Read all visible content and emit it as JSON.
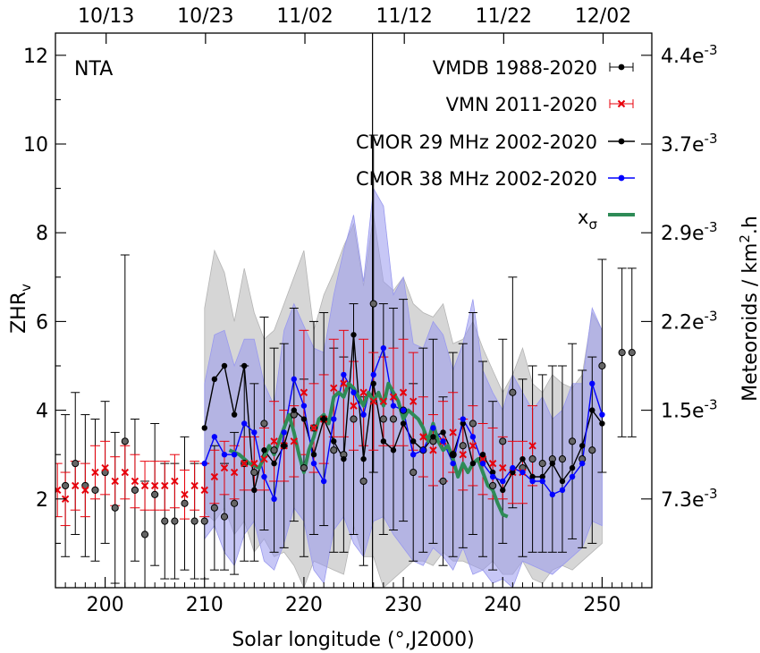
{
  "chart_data": {
    "type": "scatter",
    "annotation": "NTA",
    "xlabel": "Solar longitude (°,J2000)",
    "ylabel_main": "ZHR",
    "ylabel_sub": "v",
    "y2label_main": "Meteoroids / km",
    "y2label_sup": "2",
    "y2label_end": ".h",
    "xlim": [
      195,
      255
    ],
    "ylim": [
      0,
      12.5
    ],
    "x_ticks": [
      200,
      210,
      220,
      230,
      240,
      250
    ],
    "x_tick_labels": [
      "200",
      "210",
      "220",
      "230",
      "240",
      "250"
    ],
    "y_ticks": [
      2,
      4,
      6,
      8,
      10,
      12
    ],
    "y_tick_labels": [
      "2",
      "4",
      "6",
      "8",
      "10",
      "12"
    ],
    "top_ticks": [
      200.1,
      210.1,
      220.1,
      230.1,
      240.1,
      250.1
    ],
    "top_tick_labels": [
      "10/13",
      "10/23",
      "11/02",
      "11/12",
      "11/22",
      "12/02"
    ],
    "right_ticks": [
      2,
      4,
      6,
      8,
      10,
      12
    ],
    "right_tick_mantissas": [
      "7.3",
      "1.5",
      "2.2",
      "2.9",
      "3.7",
      "4.4"
    ],
    "right_tick_exp": "-3",
    "right_tick_prefix": "e",
    "vline_x": 226.9,
    "legend": [
      {
        "label": "VMDB 1988-2020",
        "key": "vmdb"
      },
      {
        "label": "VMN 2011-2020",
        "key": "vmn"
      },
      {
        "label": "CMOR 29 MHz 2002-2020",
        "key": "cmor29"
      },
      {
        "label": "CMOR 38 MHz 2002-2020",
        "key": "cmor38"
      },
      {
        "label": "x",
        "sub": "σ",
        "key": "xsigma"
      }
    ],
    "colors": {
      "vmdb": "#666666",
      "vmn": "#e8000b",
      "cmor29": "#000000",
      "cmor38": "#0000ff",
      "xsigma": "#2e8b57",
      "band29": "#b4b4b4",
      "band38": "#9999ee"
    },
    "series": [
      {
        "name": "VMDB 1988-2020",
        "key": "vmdb",
        "x": [
          196,
          197,
          198,
          199,
          200,
          201,
          202,
          203,
          204,
          205,
          206,
          207,
          208,
          209,
          210,
          211,
          212,
          213,
          214,
          215,
          216,
          217,
          218,
          219,
          220,
          221,
          222,
          223,
          224,
          225,
          226,
          227,
          228,
          229,
          230,
          231,
          232,
          233,
          234,
          235,
          236,
          237,
          238,
          239,
          240,
          241,
          242,
          243,
          244,
          245,
          246,
          247,
          248,
          249,
          250,
          252,
          253
        ],
        "y": [
          2.3,
          2.8,
          2.3,
          2.2,
          2.6,
          1.8,
          3.3,
          2.2,
          1.2,
          2.1,
          1.5,
          1.5,
          1.9,
          1.5,
          1.5,
          1.8,
          1.6,
          1.9,
          2.8,
          2.6,
          3.7,
          3.1,
          3.2,
          3.9,
          2.7,
          3.6,
          3.8,
          3.1,
          3.0,
          3.8,
          2.4,
          6.4,
          3.8,
          3.8,
          4.0,
          2.6,
          3.1,
          3.3,
          2.4,
          3.0,
          3.2,
          3.7,
          2.9,
          2.3,
          3.3,
          4.4,
          2.7,
          2.9,
          2.8,
          2.9,
          2.9,
          3.3,
          2.9,
          3.1,
          5.0,
          5.3,
          5.3
        ],
        "err": [
          1.6,
          1.6,
          1.6,
          1.6,
          1.6,
          1.7,
          4.2,
          1.6,
          1.2,
          1.6,
          1.3,
          1.3,
          1.5,
          1.3,
          1.3,
          1.4,
          1.2,
          1.6,
          2.2,
          2.0,
          2.4,
          2.3,
          2.3,
          2.4,
          2.0,
          2.4,
          2.4,
          2.3,
          2.2,
          2.6,
          1.9,
          3.8,
          2.6,
          2.5,
          2.5,
          2.0,
          2.3,
          2.3,
          1.9,
          2.3,
          2.3,
          2.5,
          2.2,
          1.9,
          2.3,
          2.6,
          2.0,
          2.1,
          2.0,
          2.1,
          2.1,
          2.2,
          2.0,
          2.1,
          2.4,
          1.9,
          1.9
        ]
      },
      {
        "name": "VMN 2011-2020",
        "key": "vmn",
        "x": [
          195.2,
          196,
          197,
          198,
          199,
          200,
          201,
          202,
          203,
          204,
          205,
          206,
          207,
          208,
          209,
          210,
          211,
          212,
          213,
          214,
          215,
          216,
          217,
          218,
          219,
          220,
          221,
          222,
          223,
          224,
          225,
          226,
          227,
          228,
          229,
          230,
          231,
          232,
          233,
          234,
          235,
          236,
          237,
          238,
          239,
          240,
          241,
          242,
          243
        ],
        "y": [
          2.2,
          2.0,
          2.3,
          2.2,
          2.6,
          2.7,
          2.4,
          2.6,
          2.4,
          2.3,
          2.3,
          2.3,
          2.4,
          2.1,
          2.3,
          2.2,
          2.5,
          2.7,
          2.6,
          2.8,
          2.8,
          2.9,
          3.3,
          3.2,
          3.3,
          4.4,
          3.6,
          3.8,
          4.5,
          4.6,
          4.1,
          4.4,
          4.2,
          4.2,
          4.3,
          4.4,
          4.2,
          3.4,
          3.1,
          3.3,
          3.5,
          3.0,
          3.2,
          2.9,
          2.8,
          2.7,
          2.6,
          2.6,
          3.2
        ],
        "err": [
          0.6,
          0.6,
          0.55,
          0.6,
          0.6,
          0.6,
          0.55,
          0.6,
          0.6,
          0.55,
          0.55,
          0.55,
          0.6,
          0.55,
          0.55,
          0.6,
          0.6,
          0.6,
          0.6,
          0.6,
          0.6,
          0.7,
          0.9,
          0.8,
          0.8,
          1.4,
          1.0,
          1.0,
          1.1,
          1.2,
          1.0,
          1.2,
          1.1,
          1.0,
          1.1,
          1.2,
          1.1,
          0.9,
          0.8,
          0.9,
          0.9,
          0.8,
          0.9,
          0.8,
          0.8,
          0.7,
          0.7,
          0.7,
          0.9
        ]
      },
      {
        "name": "CMOR 29 MHz 2002-2020",
        "key": "cmor29",
        "x": [
          210,
          211,
          212,
          213,
          214,
          215,
          216,
          217,
          218,
          219,
          220,
          221,
          222,
          223,
          224,
          225,
          226,
          227,
          228,
          229,
          230,
          231,
          232,
          233,
          234,
          235,
          236,
          237,
          238,
          239,
          240,
          241,
          242,
          243,
          244,
          245,
          246,
          247,
          248,
          249,
          250
        ],
        "y": [
          3.6,
          4.7,
          5.0,
          3.9,
          5.0,
          2.2,
          3.1,
          2.8,
          3.2,
          4.0,
          3.8,
          3.0,
          3.8,
          3.3,
          2.9,
          5.7,
          2.9,
          4.6,
          3.3,
          3.1,
          3.7,
          3.3,
          3.1,
          3.4,
          3.5,
          3.0,
          3.7,
          2.8,
          3.0,
          2.6,
          2.2,
          2.6,
          2.9,
          2.5,
          2.5,
          2.8,
          2.4,
          2.7,
          3.2,
          4.0,
          3.7
        ],
        "band_lo": [
          1.7,
          1.5,
          1.8,
          1.2,
          1.5,
          0.8,
          1.1,
          0.7,
          0.8,
          0.5,
          0.0,
          0.6,
          0.5,
          0.4,
          0.3,
          1.4,
          0.7,
          0.7,
          0.0,
          0.2,
          0.4,
          0.6,
          0.6,
          0.5,
          0.8,
          0.6,
          0.6,
          0.5,
          0.4,
          0.6,
          0.3,
          0.3,
          0.6,
          0.2,
          0.1,
          0.4,
          0.5,
          0.4,
          0.6,
          0.8,
          1.0
        ],
        "band_hi": [
          6.3,
          7.6,
          7.1,
          6.0,
          7.2,
          6.2,
          5.6,
          5.8,
          6.4,
          7.0,
          7.6,
          5.8,
          6.6,
          7.1,
          7.7,
          8.2,
          6.8,
          8.4,
          6.9,
          6.7,
          7.0,
          6.4,
          6.2,
          6.1,
          6.4,
          5.5,
          5.6,
          6.0,
          5.4,
          4.9,
          4.4,
          4.8,
          5.4,
          4.6,
          4.4,
          4.8,
          4.6,
          4.5,
          4.8,
          6.2,
          5.8
        ]
      },
      {
        "name": "CMOR 38 MHz 2002-2020",
        "key": "cmor38",
        "x": [
          210,
          211,
          212,
          213,
          214,
          215,
          216,
          217,
          218,
          219,
          220,
          221,
          222,
          223,
          224,
          225,
          226,
          227,
          228,
          229,
          230,
          231,
          232,
          233,
          234,
          235,
          236,
          237,
          238,
          239,
          240,
          241,
          242,
          243,
          244,
          245,
          246,
          247,
          248,
          249,
          250
        ],
        "y": [
          2.8,
          3.4,
          3.0,
          3.0,
          3.7,
          3.5,
          2.5,
          2.0,
          3.5,
          4.7,
          4.1,
          2.8,
          2.4,
          3.8,
          4.8,
          4.4,
          3.9,
          4.8,
          5.4,
          4.1,
          4.0,
          3.0,
          3.1,
          3.6,
          3.3,
          2.8,
          3.8,
          3.4,
          2.8,
          2.5,
          2.4,
          2.7,
          2.6,
          2.4,
          2.4,
          2.1,
          2.2,
          2.5,
          2.8,
          4.6,
          3.9
        ],
        "band_lo": [
          1.1,
          1.4,
          0.8,
          0.5,
          1.2,
          1.5,
          0.6,
          0.4,
          1.0,
          1.8,
          1.5,
          0.4,
          0.1,
          1.3,
          1.6,
          1.0,
          0.7,
          1.5,
          1.6,
          1.2,
          0.9,
          0.6,
          0.5,
          0.9,
          0.7,
          0.4,
          0.9,
          0.3,
          0.4,
          0.1,
          0.2,
          0.0,
          0.6,
          0.5,
          0.4,
          0.3,
          0.5,
          0.7,
          0.9,
          1.5,
          1.4
        ],
        "band_hi": [
          4.6,
          5.7,
          5.8,
          5.0,
          5.6,
          5.6,
          4.6,
          4.1,
          5.8,
          6.4,
          5.9,
          5.4,
          5.3,
          6.6,
          7.6,
          8.4,
          6.9,
          9.0,
          8.6,
          6.6,
          7.0,
          5.5,
          5.4,
          6.0,
          5.7,
          4.9,
          5.5,
          6.5,
          4.9,
          4.4,
          4.0,
          4.8,
          4.4,
          4.0,
          4.3,
          3.8,
          4.0,
          4.6,
          4.6,
          6.3,
          5.8
        ]
      },
      {
        "name": "xσ",
        "key": "xsigma",
        "x": [
          212.5,
          213.5,
          214.5,
          215.5,
          216.5,
          217,
          217.5,
          218,
          218.5,
          219,
          219.5,
          220,
          220.5,
          221,
          221.5,
          222,
          222.5,
          223,
          223.5,
          224,
          224.5,
          225,
          225.5,
          226,
          226.5,
          227,
          227.5,
          228,
          228.5,
          229,
          229.5,
          230,
          230.5,
          231,
          231.5,
          232,
          232.5,
          233,
          233.5,
          234,
          234.5,
          235,
          235.5,
          236,
          236.5,
          237,
          237.5,
          238,
          238.5,
          239,
          239.5,
          240,
          240.5
        ],
        "y": [
          3.1,
          3.0,
          2.8,
          2.7,
          3.2,
          3.0,
          3.3,
          3.6,
          3.9,
          3.5,
          3.0,
          2.6,
          3.1,
          3.4,
          3.8,
          3.9,
          3.7,
          4.3,
          4.4,
          4.3,
          4.6,
          4.5,
          4.3,
          4.1,
          4.4,
          4.2,
          4.4,
          4.1,
          4.6,
          4.4,
          4.2,
          3.8,
          4.0,
          3.9,
          3.8,
          3.6,
          3.3,
          3.7,
          3.3,
          3.1,
          3.2,
          2.9,
          2.5,
          2.8,
          2.6,
          2.8,
          2.9,
          2.6,
          2.3,
          2.2,
          1.9,
          1.65,
          1.6
        ]
      }
    ]
  }
}
